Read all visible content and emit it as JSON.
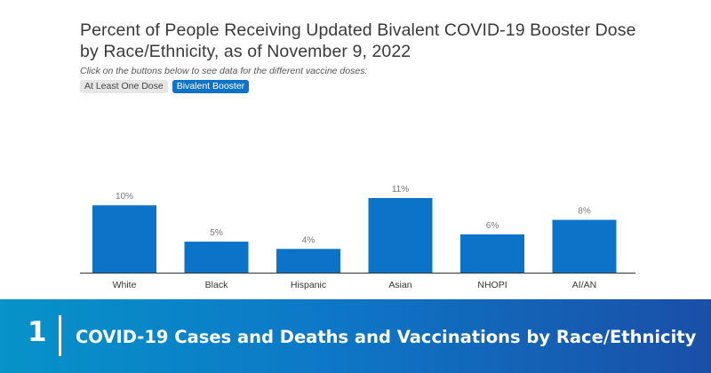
{
  "header": {
    "title_line1": "Percent of People Receiving Updated Bivalent COVID-19 Booster Dose",
    "title_line2": "by Race/Ethnicity, as of November 9, 2022",
    "instructions": "Click on the buttons below to see data for the different vaccine doses:"
  },
  "buttons": {
    "at_least_one": "At Least One Dose",
    "bivalent_booster": "Bivalent Booster"
  },
  "colors": {
    "bar": "#0b74c8",
    "label": "#777777",
    "axis": "#333333"
  },
  "chart_data": {
    "type": "bar",
    "title": "Percent of People Receiving Updated Bivalent COVID-19 Booster Dose by Race/Ethnicity, as of November 9, 2022",
    "categories": [
      "White",
      "Black",
      "Hispanic",
      "Asian",
      "NHOPI",
      "AI/AN"
    ],
    "values": [
      10,
      5,
      4,
      11,
      6,
      8
    ],
    "data_labels": [
      "10%",
      "5%",
      "4%",
      "11%",
      "6%",
      "8%"
    ],
    "xlabel": "",
    "ylabel": "",
    "ylim": [
      0,
      11
    ],
    "grid": false,
    "unit": "%"
  },
  "footer": {
    "number": "1",
    "text": "COVID-19 Cases and Deaths and Vaccinations by Race/Ethnicity"
  }
}
